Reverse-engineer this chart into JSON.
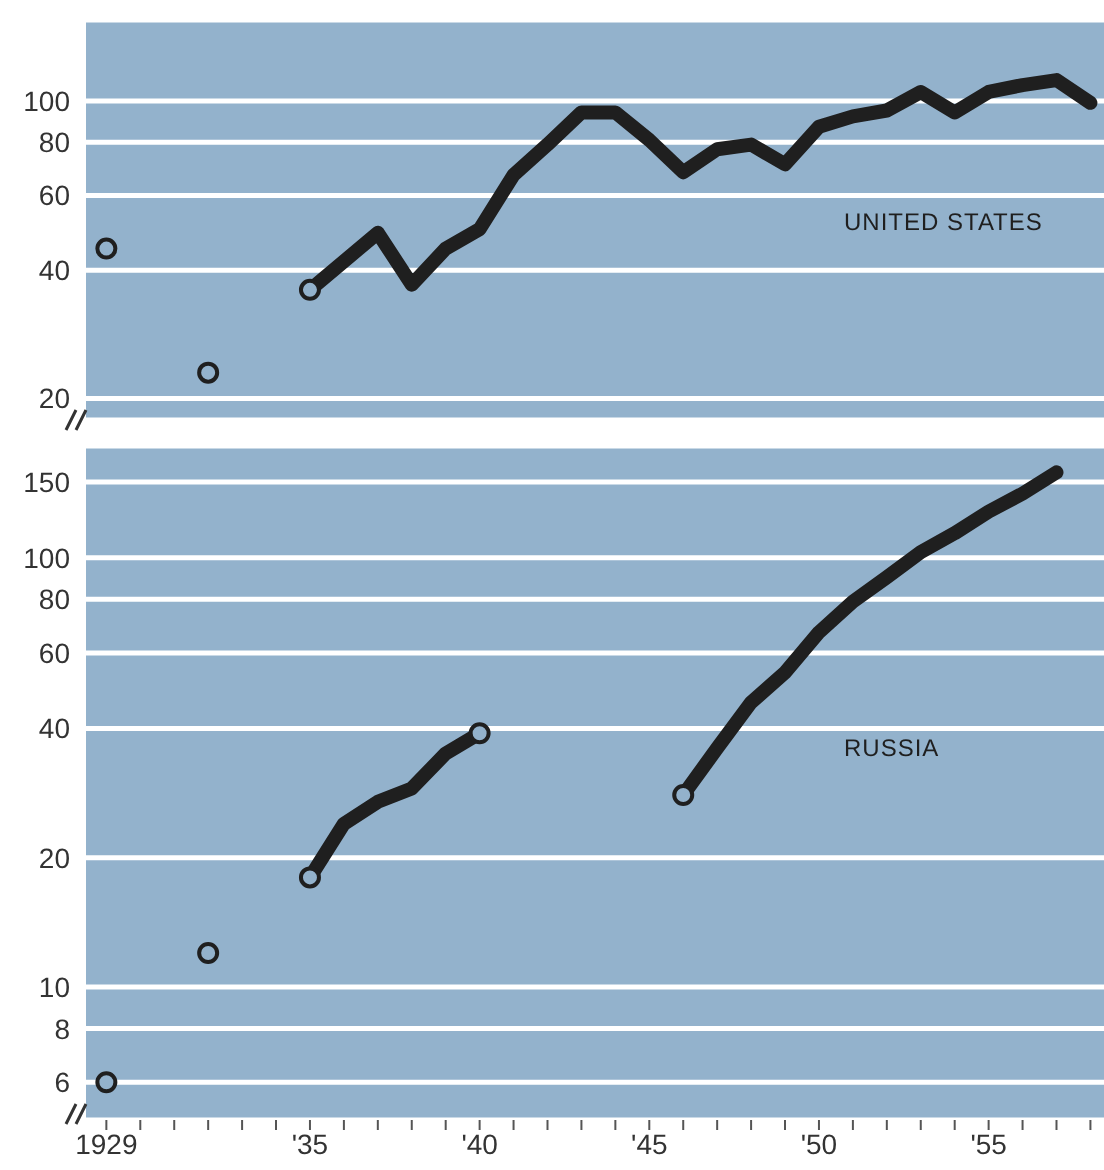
{
  "chart_data": [
    {
      "type": "line",
      "log": true,
      "grid": "y",
      "tick_labels": "y",
      "x": [
        1929,
        1930,
        1931,
        1932,
        1933,
        1934,
        1935,
        1936,
        1937,
        1938,
        1939,
        1940,
        1941,
        1942,
        1943,
        1944,
        1945,
        1946,
        1947,
        1948,
        1949,
        1950,
        1951,
        1952,
        1953,
        1954,
        1955,
        1956,
        1957,
        1958
      ],
      "xlim": [
        1928.4,
        1958.4
      ],
      "ylim": [
        17.8,
        155
      ],
      "yticks": [
        20,
        40,
        60,
        80,
        100
      ],
      "series": [
        {
          "name": "UNITED STATES",
          "color": "#1f1f1f",
          "values": [
            null,
            null,
            null,
            null,
            null,
            null,
            36,
            42,
            49,
            37,
            45,
            50,
            67,
            79,
            94,
            94,
            81,
            68,
            77,
            79,
            71,
            87,
            92,
            95,
            105,
            94,
            105,
            109,
            112,
            99
          ]
        },
        {
          "type": "scatter",
          "marker": "circle",
          "color": "#1f1f1f",
          "values": [
            45,
            null,
            null,
            23,
            null,
            null,
            36,
            null,
            null,
            null,
            null,
            null,
            null,
            null,
            null,
            null,
            null,
            null,
            null,
            null,
            null,
            null,
            null,
            null,
            null,
            null,
            null,
            null,
            null,
            null
          ]
        }
      ]
    },
    {
      "type": "line",
      "log": true,
      "grid": "y",
      "x": [
        1929,
        1930,
        1931,
        1932,
        1933,
        1934,
        1935,
        1936,
        1937,
        1938,
        1939,
        1940,
        1941,
        1942,
        1943,
        1944,
        1945,
        1946,
        1947,
        1948,
        1949,
        1950,
        1951,
        1952,
        1953,
        1954,
        1955,
        1956,
        1957
      ],
      "xlim": [
        1928.4,
        1958.4
      ],
      "xticks": [
        {
          "value": 1929,
          "label": "1929"
        },
        {
          "value": 1930,
          "label": null
        },
        {
          "value": 1931,
          "label": null
        },
        {
          "value": 1932,
          "label": null
        },
        {
          "value": 1933,
          "label": null
        },
        {
          "value": 1934,
          "label": null
        },
        {
          "value": 1935,
          "label": "'35"
        },
        {
          "value": 1936,
          "label": null
        },
        {
          "value": 1937,
          "label": null
        },
        {
          "value": 1938,
          "label": null
        },
        {
          "value": 1939,
          "label": null
        },
        {
          "value": 1940,
          "label": "'40"
        },
        {
          "value": 1941,
          "label": null
        },
        {
          "value": 1942,
          "label": null
        },
        {
          "value": 1943,
          "label": null
        },
        {
          "value": 1944,
          "label": null
        },
        {
          "value": 1945,
          "label": "'45"
        },
        {
          "value": 1946,
          "label": null
        },
        {
          "value": 1947,
          "label": null
        },
        {
          "value": 1948,
          "label": null
        },
        {
          "value": 1949,
          "label": null
        },
        {
          "value": 1950,
          "label": "'50"
        },
        {
          "value": 1951,
          "label": null
        },
        {
          "value": 1952,
          "label": null
        },
        {
          "value": 1953,
          "label": null
        },
        {
          "value": 1954,
          "label": null
        },
        {
          "value": 1955,
          "label": "'55"
        },
        {
          "value": 1956,
          "label": null
        },
        {
          "value": 1957,
          "label": null
        },
        {
          "value": 1958,
          "label": null
        }
      ],
      "ylim": [
        4.9,
        182
      ],
      "yticks": [
        6,
        8,
        10,
        20,
        40,
        60,
        80,
        100,
        150
      ],
      "series": [
        {
          "name": "RUSSIA",
          "color": "#1f1f1f",
          "values": [
            null,
            null,
            null,
            null,
            null,
            null,
            18,
            24,
            27,
            29,
            35,
            39,
            null,
            null,
            null,
            null,
            null,
            28,
            36,
            46,
            54,
            67,
            79,
            90,
            103,
            114,
            128,
            141,
            158
          ]
        },
        {
          "type": "scatter",
          "marker": "circle",
          "color": "#1f1f1f",
          "values": [
            6,
            null,
            null,
            12,
            null,
            null,
            18,
            null,
            null,
            null,
            null,
            39,
            null,
            null,
            null,
            null,
            null,
            28,
            null,
            null,
            null,
            null,
            null,
            null,
            null,
            null,
            null,
            null,
            null
          ]
        }
      ]
    }
  ]
}
